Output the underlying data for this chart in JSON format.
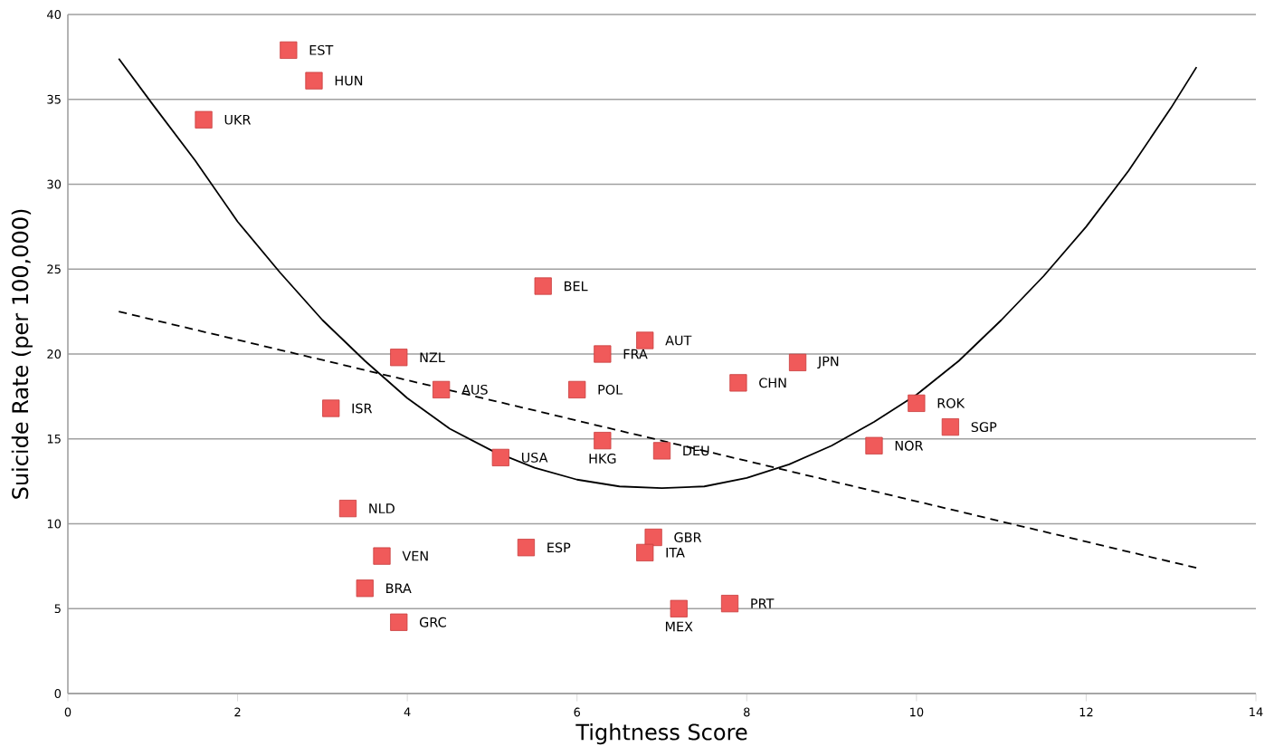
{
  "chart_data": {
    "type": "scatter",
    "xlabel": "Tightness Score",
    "ylabel": "Suicide Rate (per 100,000)",
    "xlim": [
      0,
      14
    ],
    "ylim": [
      0,
      40
    ],
    "xticks": [
      0,
      2,
      4,
      6,
      8,
      10,
      12,
      14
    ],
    "yticks": [
      0,
      5,
      10,
      15,
      20,
      25,
      30,
      35,
      40
    ],
    "grid": "y",
    "series": [
      {
        "color": "#f05a5a",
        "marker": "square",
        "x": [
          2.6,
          2.9,
          1.6,
          5.6,
          6.8,
          6.3,
          3.9,
          4.4,
          6.0,
          7.9,
          8.6,
          10.0,
          10.4,
          9.5,
          3.1,
          6.3,
          7.0,
          5.1,
          3.3,
          3.7,
          5.4,
          6.9,
          6.8,
          3.5,
          3.9,
          7.2,
          7.8
        ],
        "values": [
          37.9,
          36.1,
          33.8,
          24.0,
          20.8,
          20.0,
          19.8,
          17.9,
          17.9,
          18.3,
          19.5,
          17.1,
          15.7,
          14.6,
          16.8,
          14.9,
          14.3,
          13.9,
          10.9,
          8.1,
          8.6,
          9.2,
          8.3,
          6.2,
          4.2,
          5.0,
          5.3
        ]
      },
      {
        "type": "line",
        "color": "#000000",
        "marker": "none",
        "line_style": "solid",
        "x": [
          0.6,
          1,
          1.5,
          2,
          2.5,
          3,
          3.5,
          4,
          4.5,
          5,
          5.5,
          6,
          6.5,
          7,
          7.5,
          8,
          8.5,
          9,
          9.5,
          10,
          10.5,
          11,
          11.5,
          12,
          12.5,
          13,
          13.3
        ],
        "values": [
          37.4,
          34.7,
          31.4,
          27.8,
          24.8,
          22.0,
          19.6,
          17.4,
          15.6,
          14.3,
          13.3,
          12.6,
          12.2,
          12.1,
          12.2,
          12.7,
          13.5,
          14.6,
          16.0,
          17.6,
          19.6,
          22.0,
          24.6,
          27.5,
          30.8,
          34.5,
          36.9
        ]
      },
      {
        "type": "line",
        "color": "#000000",
        "marker": "none",
        "line_style": "dashed",
        "x": [
          0.6,
          13.3
        ],
        "values": [
          22.5,
          7.4
        ]
      }
    ],
    "annotations": [
      {
        "text": "EST",
        "x": 2.6,
        "y": 37.9
      },
      {
        "text": "HUN",
        "x": 2.9,
        "y": 36.1
      },
      {
        "text": "UKR",
        "x": 1.6,
        "y": 33.8
      },
      {
        "text": "BEL",
        "x": 5.6,
        "y": 24.0
      },
      {
        "text": "AUT",
        "x": 6.8,
        "y": 20.8
      },
      {
        "text": "FRA",
        "x": 6.3,
        "y": 20.0
      },
      {
        "text": "NZL",
        "x": 3.9,
        "y": 19.8
      },
      {
        "text": "AUS",
        "x": 4.4,
        "y": 17.9
      },
      {
        "text": "POL",
        "x": 6.0,
        "y": 17.9
      },
      {
        "text": "CHN",
        "x": 7.9,
        "y": 18.3
      },
      {
        "text": "JPN",
        "x": 8.6,
        "y": 19.5
      },
      {
        "text": "ROK",
        "x": 10.0,
        "y": 17.1
      },
      {
        "text": "SGP",
        "x": 10.4,
        "y": 15.7
      },
      {
        "text": "NOR",
        "x": 9.5,
        "y": 14.6
      },
      {
        "text": "ISR",
        "x": 3.1,
        "y": 16.8
      },
      {
        "text": "HKG",
        "x": 6.3,
        "y": 14.9
      },
      {
        "text": "DEU",
        "x": 7.0,
        "y": 14.3
      },
      {
        "text": "USA",
        "x": 5.1,
        "y": 13.9
      },
      {
        "text": "NLD",
        "x": 3.3,
        "y": 10.9
      },
      {
        "text": "VEN",
        "x": 3.7,
        "y": 8.1
      },
      {
        "text": "ESP",
        "x": 5.4,
        "y": 8.6
      },
      {
        "text": "GBR",
        "x": 6.9,
        "y": 9.2
      },
      {
        "text": "ITA",
        "x": 6.8,
        "y": 8.3
      },
      {
        "text": "BRA",
        "x": 3.5,
        "y": 6.2
      },
      {
        "text": "GRC",
        "x": 3.9,
        "y": 4.2
      },
      {
        "text": "MEX",
        "x": 7.2,
        "y": 5.0
      },
      {
        "text": "PRT",
        "x": 7.8,
        "y": 5.3
      }
    ]
  }
}
